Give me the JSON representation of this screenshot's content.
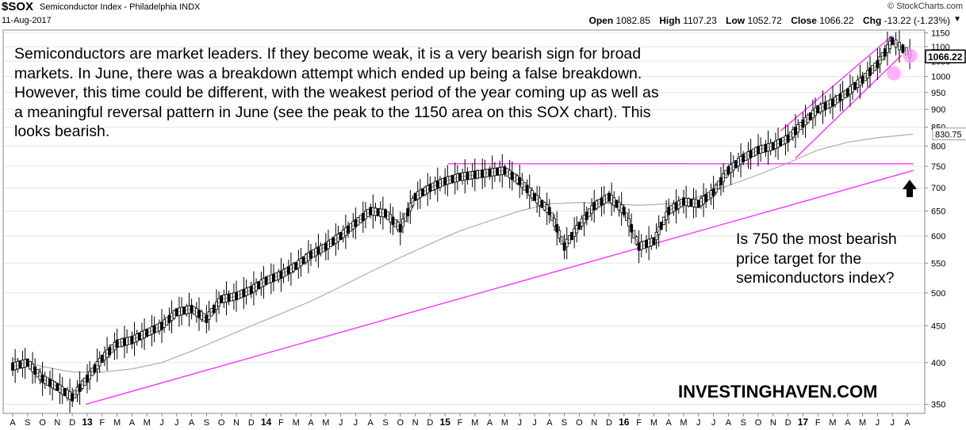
{
  "header": {
    "symbol": "$SOX",
    "name": "Semiconductor Index - Philadelphia",
    "exchange": "INDX",
    "date": "11-Aug-2017",
    "copyright": "© StockCharts.com",
    "open_label": "Open",
    "open": "1082.85",
    "high_label": "High",
    "high": "1107.23",
    "low_label": "Low",
    "low": "1052.72",
    "close_label": "Close",
    "close": "1066.22",
    "chg_label": "Chg",
    "chg": "-13.22 (-1.23%)"
  },
  "annotations": {
    "left_text": "Semiconductors are market leaders. If they become weak, it is a very bearish sign for broad markets. In June, there was a breakdown attempt which ended up being a false breakdown. However, this time could be different, with the weakest period of the year coming up as well as a meaningful reversal pattern in June (see the peak to the 1150 area on this SOX chart). This looks bearish.",
    "right_text": "Is 750 the most bearish price target for the semiconductors index?",
    "brand": "INVESTINGHAVEN.COM"
  },
  "colors": {
    "trendline": "#ff33ff",
    "moving_average": "#b3b3b3",
    "candles": "#000000",
    "highlight_circle": "#ff99ff",
    "last_price_box": "#000000"
  },
  "chart_data": {
    "type": "line",
    "scale": "log",
    "ylim": [
      340,
      1160
    ],
    "y_ticks": [
      350,
      400,
      450,
      500,
      550,
      600,
      650,
      700,
      750,
      800,
      850,
      900,
      950,
      1000,
      1050,
      1100,
      1150
    ],
    "x_tick_labels": [
      "A",
      "S",
      "O",
      "N",
      "D",
      "13",
      "F",
      "M",
      "A",
      "M",
      "J",
      "J",
      "A",
      "S",
      "O",
      "N",
      "D",
      "14",
      "F",
      "M",
      "A",
      "M",
      "J",
      "J",
      "A",
      "S",
      "O",
      "N",
      "D",
      "15",
      "F",
      "M",
      "A",
      "M",
      "J",
      "J",
      "A",
      "S",
      "O",
      "N",
      "D",
      "16",
      "F",
      "M",
      "A",
      "M",
      "J",
      "J",
      "A",
      "S",
      "O",
      "N",
      "D",
      "17",
      "F",
      "M",
      "A",
      "M",
      "J",
      "J",
      "A"
    ],
    "x_year_labels": [
      "13",
      "14",
      "15",
      "16",
      "17"
    ],
    "last_price": "1066.22",
    "ma_last_value": "830.75",
    "series": [
      {
        "x": [
          0,
          1,
          2,
          3,
          4,
          5,
          6,
          7,
          8,
          9,
          10,
          11,
          12,
          13,
          14,
          15,
          16,
          17,
          18,
          19,
          20,
          21,
          22,
          23,
          24,
          25,
          26,
          27,
          28,
          29,
          30,
          31,
          32,
          33,
          34,
          35,
          36,
          37,
          38,
          39,
          40,
          41,
          42,
          43,
          44,
          45,
          46,
          47,
          48,
          49,
          50,
          51,
          52,
          53,
          54,
          55,
          56,
          57,
          58,
          59,
          60.4
        ],
        "values": [
          395,
          400,
          380,
          370,
          358,
          380,
          405,
          425,
          430,
          440,
          450,
          470,
          475,
          460,
          490,
          495,
          505,
          520,
          530,
          545,
          565,
          580,
          600,
          625,
          650,
          645,
          615,
          680,
          700,
          715,
          725,
          730,
          735,
          740,
          715,
          680,
          650,
          580,
          620,
          660,
          680,
          650,
          580,
          590,
          650,
          670,
          665,
          690,
          740,
          770,
          790,
          800,
          820,
          860,
          900,
          920,
          950,
          990,
          1040,
          1120,
          1066
        ]
      },
      {
        "x": [
          0,
          2,
          4,
          6,
          8,
          10,
          12,
          14,
          16,
          18,
          20,
          22,
          24,
          26,
          28,
          30,
          32,
          34,
          36,
          38,
          40,
          42,
          44,
          46,
          48,
          50,
          52,
          54,
          56,
          58,
          60.4
        ],
        "values": [
          405,
          395,
          388,
          388,
          392,
          400,
          415,
          432,
          450,
          468,
          487,
          510,
          535,
          560,
          585,
          610,
          630,
          650,
          665,
          668,
          665,
          662,
          665,
          680,
          705,
          730,
          758,
          790,
          810,
          822,
          831
        ]
      }
    ],
    "trendlines": [
      {
        "x": [
          4.9,
          60.4
        ],
        "values": [
          350,
          740
        ]
      },
      {
        "x": [
          39.5,
          60.4
        ],
        "values": [
          756,
          756
        ]
      },
      {
        "x": [
          51.5,
          59
        ],
        "values": [
          840,
          1140
        ]
      },
      {
        "x": [
          52.5,
          59.6
        ],
        "values": [
          770,
          1070
        ]
      }
    ]
  }
}
